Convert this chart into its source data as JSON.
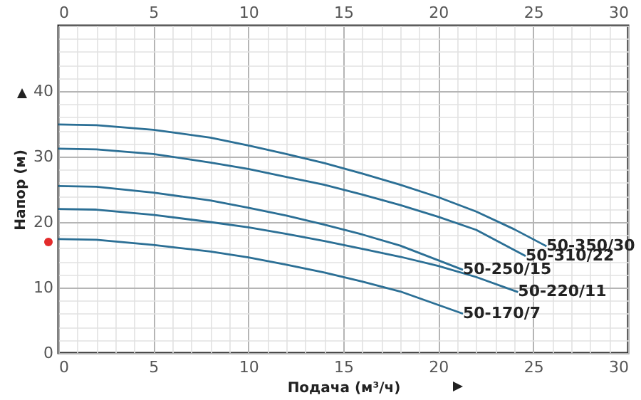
{
  "chart_data": {
    "type": "line",
    "xlabel": "Подача (м³/ч)",
    "ylabel": "Напор (м)",
    "xlim": [
      0,
      30
    ],
    "ylim": [
      0,
      50
    ],
    "xticks": [
      0,
      {
        "value": 1,
        "label": null
      },
      {
        "value": 2,
        "label": null
      },
      {
        "value": 3,
        "label": null
      },
      {
        "value": 4,
        "label": null
      },
      5,
      {
        "value": 6,
        "label": null
      },
      {
        "value": 7,
        "label": null
      },
      {
        "value": 8,
        "label": null
      },
      {
        "value": 9,
        "label": null
      },
      10,
      {
        "value": 11,
        "label": null
      },
      {
        "value": 12,
        "label": null
      },
      {
        "value": 13,
        "label": null
      },
      {
        "value": 14,
        "label": null
      },
      15,
      {
        "value": 16,
        "label": null
      },
      {
        "value": 17,
        "label": null
      },
      {
        "value": 18,
        "label": null
      },
      {
        "value": 19,
        "label": null
      },
      20,
      {
        "value": 21,
        "label": null
      },
      {
        "value": 22,
        "label": null
      },
      {
        "value": 23,
        "label": null
      },
      {
        "value": 24,
        "label": null
      },
      25,
      {
        "value": 26,
        "label": null
      },
      {
        "value": 27,
        "label": null
      },
      {
        "value": 28,
        "label": null
      },
      {
        "value": 29,
        "label": null
      },
      30
    ],
    "x2lim": [
      0,
      30
    ],
    "x2ticks": [
      0,
      5,
      10,
      15,
      20,
      25,
      30
    ],
    "yticks": [
      0,
      {
        "value": 2,
        "label": null
      },
      {
        "value": 4,
        "label": null
      },
      {
        "value": 6,
        "label": null
      },
      {
        "value": 8,
        "label": null
      },
      10,
      {
        "value": 12,
        "label": null
      },
      {
        "value": 14,
        "label": null
      },
      {
        "value": 16,
        "label": null
      },
      {
        "value": 18,
        "label": null
      },
      20,
      {
        "value": 22,
        "label": null
      },
      {
        "value": 24,
        "label": null
      },
      {
        "value": 26,
        "label": null
      },
      {
        "value": 28,
        "label": null
      },
      30,
      {
        "value": 32,
        "label": null
      },
      {
        "value": 34,
        "label": null
      },
      {
        "value": 36,
        "label": null
      },
      {
        "value": 38,
        "label": null
      },
      40,
      {
        "value": 42,
        "label": null
      },
      {
        "value": 44,
        "label": null
      },
      {
        "value": 46,
        "label": null
      },
      {
        "value": 48,
        "label": null
      },
      {
        "value": 50,
        "label": null
      }
    ],
    "grid": true,
    "marker": "none",
    "line_style": "solid",
    "series": [
      {
        "name": "50-350/30",
        "color": "#2b6f95",
        "x": [
          0,
          2,
          5,
          8,
          10,
          12,
          14,
          16,
          18,
          20,
          22,
          24,
          25.7
        ],
        "values": [
          34.9,
          34.8,
          34.1,
          32.9,
          31.7,
          30.4,
          29,
          27.4,
          25.7,
          23.8,
          21.6,
          18.9,
          16.3
        ]
      },
      {
        "name": "50-310/22",
        "color": "#2b6f95",
        "x": [
          0,
          2,
          5,
          8,
          10,
          12,
          14,
          16,
          18,
          20,
          22,
          24.6
        ],
        "values": [
          31.2,
          31.1,
          30.4,
          29.1,
          28.1,
          26.9,
          25.7,
          24.2,
          22.6,
          20.8,
          18.8,
          14.8
        ]
      },
      {
        "name": "50-250/15",
        "color": "#2b6f95",
        "x": [
          0,
          2,
          5,
          8,
          10,
          12,
          14,
          16,
          18,
          21.3
        ],
        "values": [
          25.5,
          25.4,
          24.5,
          23.3,
          22.2,
          21,
          19.6,
          18.1,
          16.4,
          12.7
        ]
      },
      {
        "name": "50-220/11",
        "color": "#2b6f95",
        "x": [
          0,
          2,
          5,
          8,
          10,
          12,
          14,
          16,
          18,
          20,
          22,
          24.2
        ],
        "values": [
          22,
          21.9,
          21.1,
          20,
          19.2,
          18.2,
          17.1,
          15.9,
          14.7,
          13.3,
          11.6,
          9.3
        ]
      },
      {
        "name": "50-170/7",
        "color": "#2b6f95",
        "x": [
          0,
          2,
          5,
          8,
          10,
          12,
          14,
          16,
          18,
          21.3
        ],
        "values": [
          17.4,
          17.3,
          16.5,
          15.5,
          14.6,
          13.5,
          12.3,
          10.9,
          9.4,
          6
        ]
      }
    ]
  }
}
